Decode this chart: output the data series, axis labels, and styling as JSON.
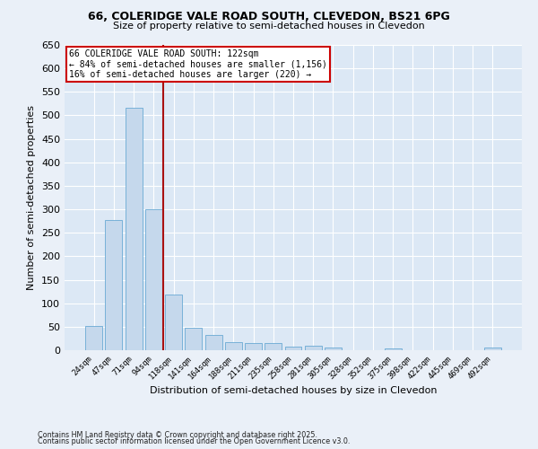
{
  "title1": "66, COLERIDGE VALE ROAD SOUTH, CLEVEDON, BS21 6PG",
  "title2": "Size of property relative to semi-detached houses in Clevedon",
  "xlabel": "Distribution of semi-detached houses by size in Clevedon",
  "ylabel": "Number of semi-detached properties",
  "categories": [
    "24sqm",
    "47sqm",
    "71sqm",
    "94sqm",
    "118sqm",
    "141sqm",
    "164sqm",
    "188sqm",
    "211sqm",
    "235sqm",
    "258sqm",
    "281sqm",
    "305sqm",
    "328sqm",
    "352sqm",
    "375sqm",
    "398sqm",
    "422sqm",
    "445sqm",
    "469sqm",
    "492sqm"
  ],
  "values": [
    52,
    278,
    516,
    300,
    118,
    47,
    33,
    18,
    15,
    15,
    8,
    10,
    5,
    0,
    0,
    4,
    0,
    0,
    0,
    0,
    5
  ],
  "bar_color": "#c5d8ec",
  "bar_edge_color": "#6aaad4",
  "vline_x": 4,
  "vline_color": "#aa1111",
  "annotation_text": "66 COLERIDGE VALE ROAD SOUTH: 122sqm\n← 84% of semi-detached houses are smaller (1,156)\n16% of semi-detached houses are larger (220) →",
  "annotation_box_color": "#ffffff",
  "annotation_box_edge": "#cc0000",
  "ylim": [
    0,
    650
  ],
  "yticks": [
    0,
    50,
    100,
    150,
    200,
    250,
    300,
    350,
    400,
    450,
    500,
    550,
    600,
    650
  ],
  "plot_bg": "#dce8f5",
  "fig_bg": "#eaf0f8",
  "footer1": "Contains HM Land Registry data © Crown copyright and database right 2025.",
  "footer2": "Contains public sector information licensed under the Open Government Licence v3.0."
}
